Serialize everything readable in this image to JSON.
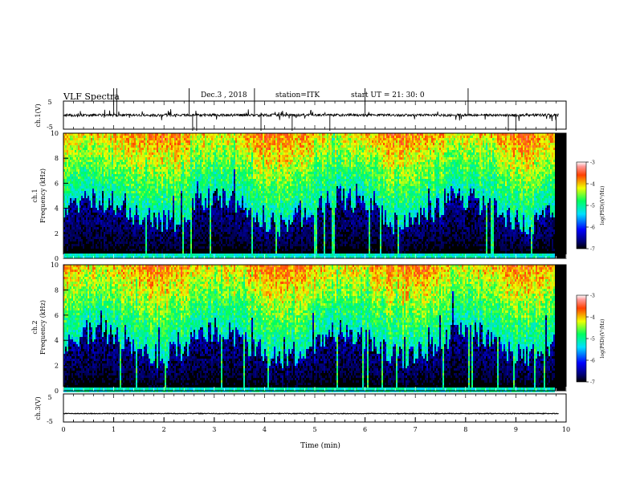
{
  "chart_data": {
    "type": "heatmap",
    "title": "VLF Spectra",
    "date": "Dec.3 , 2018",
    "station": "station=ITK",
    "start_time": "start UT = 21: 30: 0",
    "x_axis": {
      "label": "Time (min)",
      "range": [
        0,
        10
      ],
      "ticks": [
        "0",
        "1",
        "2",
        "3",
        "4",
        "5",
        "6",
        "7",
        "8",
        "9",
        "10"
      ]
    },
    "panels": [
      {
        "type": "line",
        "ylabel": "ch.1(V)",
        "y_range": [
          -5,
          5
        ],
        "y_ticks": [
          "5",
          "-5"
        ],
        "baseline_value": 0,
        "note": "noisy waveform near 0 V with impulsive spikes"
      },
      {
        "type": "heatmap",
        "ylabel": [
          "ch.1",
          "Frequency (kHz)"
        ],
        "y_range": [
          0,
          10
        ],
        "y_ticks": [
          "0",
          "2",
          "4",
          "6",
          "8",
          "10"
        ],
        "data_end_min": 9.8,
        "colorbar": {
          "label": "log(PSD)(V²/Hz)",
          "range": [
            -7,
            -3
          ],
          "ticks": [
            "-3",
            "-4",
            "-5",
            "-6",
            "-7"
          ]
        }
      },
      {
        "type": "heatmap",
        "ylabel": [
          "ch.2",
          "Frequency (kHz)"
        ],
        "y_range": [
          0,
          10
        ],
        "y_ticks": [
          "0",
          "2",
          "4",
          "6",
          "8",
          "10"
        ],
        "data_end_min": 9.8,
        "colorbar": {
          "label": "log(PSD)(V²/Hz)",
          "range": [
            -7,
            -3
          ],
          "ticks": [
            "-3",
            "-4",
            "-5",
            "-6",
            "-7"
          ]
        }
      },
      {
        "type": "line",
        "ylabel": "ch.3(V)",
        "y_range": [
          -5,
          5
        ],
        "y_ticks": [
          "5",
          "-5"
        ],
        "baseline_value": -2,
        "note": "nearly flat trace"
      }
    ]
  }
}
